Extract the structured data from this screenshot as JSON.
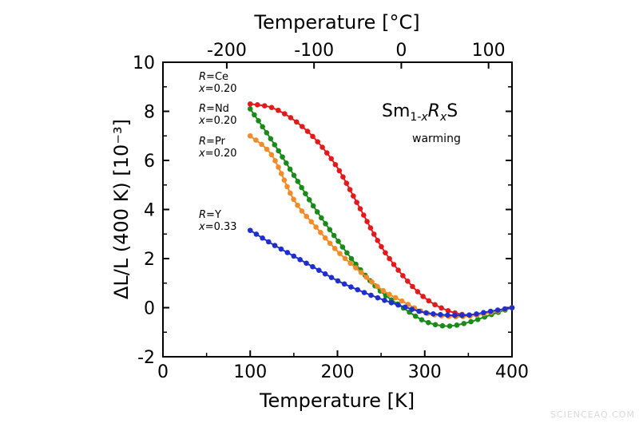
{
  "chart_data": {
    "type": "line",
    "xlabel": "Temperature [K]",
    "top_xlabel": "Temperature [°C]",
    "ylabel": "ΔL/L (400 K) [10⁻³]",
    "xlim": [
      0,
      400
    ],
    "ylim": [
      -2,
      10
    ],
    "x_ticks": [
      0,
      100,
      200,
      300,
      400
    ],
    "y_ticks": [
      -2,
      0,
      2,
      4,
      6,
      8,
      10
    ],
    "top_ticks": [
      -200,
      -100,
      0,
      100
    ],
    "grid": false,
    "formula": {
      "base": "Sm",
      "sub1": "1-",
      "sub1_italic": "x",
      "mid_italic": "R",
      "sub2_italic": "x",
      "tail": "S"
    },
    "condition": "warming",
    "series": [
      {
        "name": "R=Ce x=0.20",
        "r_label": "R",
        "r_value": "=Ce",
        "x_label": "x",
        "x_value": "=0.20",
        "color": "#e31a1c",
        "x": [
          100,
          125,
          150,
          175,
          200,
          225,
          250,
          275,
          300,
          325,
          350,
          375,
          400
        ],
        "y": [
          8.3,
          8.15,
          7.65,
          6.85,
          5.7,
          4.1,
          2.5,
          1.3,
          0.4,
          -0.1,
          -0.3,
          -0.2,
          0.0
        ]
      },
      {
        "name": "R=Nd x=0.20",
        "r_label": "R",
        "r_value": "=Nd",
        "x_label": "x",
        "x_value": "=0.20",
        "color": "#1a8a1a",
        "x": [
          100,
          125,
          150,
          175,
          200,
          225,
          250,
          275,
          300,
          325,
          350,
          375,
          400
        ],
        "y": [
          8.1,
          6.8,
          5.4,
          4.0,
          2.75,
          1.6,
          0.65,
          0.0,
          -0.55,
          -0.75,
          -0.6,
          -0.3,
          0.0
        ]
      },
      {
        "name": "R=Pr x=0.20",
        "r_label": "R",
        "r_value": "=Pr",
        "x_label": "x",
        "x_value": "=0.20",
        "color": "#f28c28",
        "x": [
          100,
          125,
          150,
          175,
          200,
          225,
          250,
          275,
          300,
          325,
          350,
          375,
          400
        ],
        "y": [
          7.0,
          6.2,
          4.4,
          3.3,
          2.3,
          1.5,
          0.75,
          0.25,
          -0.2,
          -0.35,
          -0.35,
          -0.2,
          0.0
        ]
      },
      {
        "name": "R=Y x=0.33",
        "r_label": "R",
        "r_value": "=Y",
        "x_label": "x",
        "x_value": "=0.33",
        "color": "#1f2ecc",
        "x": [
          100,
          125,
          150,
          175,
          200,
          225,
          250,
          275,
          300,
          325,
          350,
          375,
          400
        ],
        "y": [
          3.15,
          2.6,
          2.1,
          1.6,
          1.1,
          0.7,
          0.35,
          0.05,
          -0.2,
          -0.3,
          -0.3,
          -0.15,
          0.0
        ]
      }
    ]
  },
  "watermark": "SCIENCEAQ.COM"
}
